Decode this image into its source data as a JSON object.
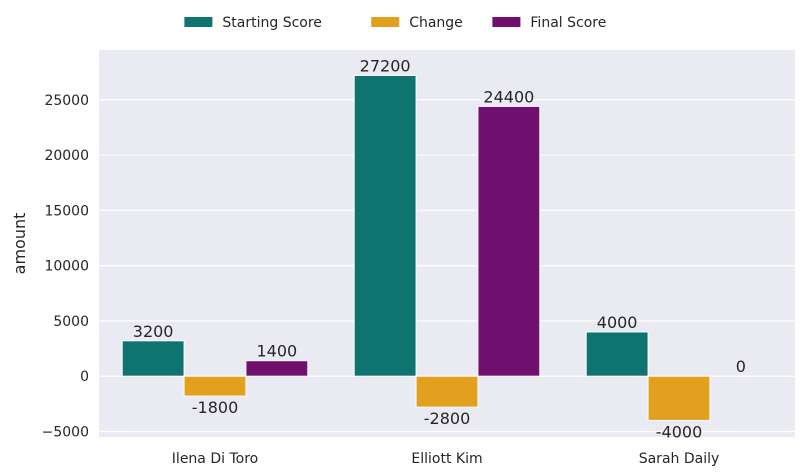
{
  "chart_data": {
    "type": "bar",
    "categories": [
      "Ilena Di Toro",
      "Elliott Kim",
      "Sarah Daily"
    ],
    "series": [
      {
        "name": "Starting Score",
        "values": [
          3200,
          27200,
          4000
        ],
        "color": "#0f7470"
      },
      {
        "name": "Change",
        "values": [
          -1800,
          -2800,
          -4000
        ],
        "color": "#e3a01e"
      },
      {
        "name": "Final Score",
        "values": [
          1400,
          24400,
          0
        ],
        "color": "#700f6e"
      }
    ],
    "xlabel": "",
    "ylabel": "amount",
    "ylim": [
      -5500,
      29500
    ],
    "yticks": [
      -5000,
      0,
      5000,
      10000,
      15000,
      20000,
      25000
    ],
    "ytick_labels": [
      "−5000",
      "0",
      "5000",
      "10000",
      "15000",
      "20000",
      "25000"
    ],
    "grid": true,
    "legend_position": "top-center",
    "background": "#eaeaf2"
  }
}
